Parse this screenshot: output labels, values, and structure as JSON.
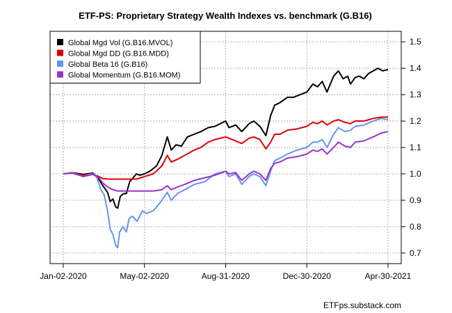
{
  "chart_data": {
    "type": "line",
    "title": "ETF-PS: Proprietary Strategy Wealth Indexes vs. benchmark (G.B16)",
    "xlabel": "",
    "ylabel": "",
    "credit": "ETFps.substack.com",
    "x_tick_labels": [
      "Jan-02-2020",
      "May-02-2020",
      "Aug-31-2020",
      "Dec-30-2020",
      "Apr-30-2021"
    ],
    "x_tick_values": [
      "2020-01-02",
      "2020-05-02",
      "2020-08-31",
      "2020-12-30",
      "2021-04-30"
    ],
    "xlim": [
      "2020-01-02",
      "2021-04-30"
    ],
    "y_ticks": [
      0.7,
      0.8,
      0.9,
      1.0,
      1.1,
      1.2,
      1.3,
      1.4,
      1.5
    ],
    "y_tick_labels": [
      "0.7",
      "0.8",
      "0.9",
      "1.0",
      "1.1",
      "1.2",
      "1.3",
      "1.4",
      "1.5"
    ],
    "ylim": [
      0.66,
      1.54
    ],
    "y_axis_side": "right",
    "grid": true,
    "legend_position": "top-left",
    "series": [
      {
        "name": "Global Mgd Vol (G.B16.MVOL)",
        "color": "#000000",
        "points": [
          [
            "2020-01-02",
            1.0
          ],
          [
            "2020-01-15",
            1.005
          ],
          [
            "2020-02-01",
            0.998
          ],
          [
            "2020-02-15",
            1.003
          ],
          [
            "2020-02-24",
            0.98
          ],
          [
            "2020-03-01",
            0.955
          ],
          [
            "2020-03-08",
            0.93
          ],
          [
            "2020-03-12",
            0.895
          ],
          [
            "2020-03-16",
            0.905
          ],
          [
            "2020-03-20",
            0.875
          ],
          [
            "2020-03-23",
            0.87
          ],
          [
            "2020-03-27",
            0.915
          ],
          [
            "2020-04-01",
            0.925
          ],
          [
            "2020-04-05",
            0.925
          ],
          [
            "2020-04-10",
            0.97
          ],
          [
            "2020-04-15",
            0.985
          ],
          [
            "2020-04-20",
            1.0
          ],
          [
            "2020-04-25",
            0.995
          ],
          [
            "2020-05-02",
            1.0
          ],
          [
            "2020-05-10",
            1.01
          ],
          [
            "2020-05-20",
            1.03
          ],
          [
            "2020-05-28",
            1.07
          ],
          [
            "2020-06-05",
            1.14
          ],
          [
            "2020-06-11",
            1.09
          ],
          [
            "2020-06-18",
            1.11
          ],
          [
            "2020-06-26",
            1.105
          ],
          [
            "2020-07-05",
            1.14
          ],
          [
            "2020-07-15",
            1.15
          ],
          [
            "2020-07-25",
            1.16
          ],
          [
            "2020-08-05",
            1.175
          ],
          [
            "2020-08-15",
            1.18
          ],
          [
            "2020-08-31",
            1.2
          ],
          [
            "2020-09-05",
            1.175
          ],
          [
            "2020-09-15",
            1.185
          ],
          [
            "2020-09-24",
            1.16
          ],
          [
            "2020-10-05",
            1.19
          ],
          [
            "2020-10-12",
            1.2
          ],
          [
            "2020-10-21",
            1.18
          ],
          [
            "2020-10-30",
            1.145
          ],
          [
            "2020-11-06",
            1.22
          ],
          [
            "2020-11-12",
            1.26
          ],
          [
            "2020-11-20",
            1.27
          ],
          [
            "2020-12-01",
            1.29
          ],
          [
            "2020-12-10",
            1.29
          ],
          [
            "2020-12-20",
            1.3
          ],
          [
            "2020-12-30",
            1.31
          ],
          [
            "2021-01-08",
            1.34
          ],
          [
            "2021-01-15",
            1.33
          ],
          [
            "2021-01-22",
            1.35
          ],
          [
            "2021-01-29",
            1.31
          ],
          [
            "2021-02-08",
            1.37
          ],
          [
            "2021-02-15",
            1.39
          ],
          [
            "2021-02-22",
            1.36
          ],
          [
            "2021-03-01",
            1.37
          ],
          [
            "2021-03-05",
            1.34
          ],
          [
            "2021-03-12",
            1.365
          ],
          [
            "2021-03-18",
            1.37
          ],
          [
            "2021-03-25",
            1.36
          ],
          [
            "2021-04-01",
            1.38
          ],
          [
            "2021-04-08",
            1.39
          ],
          [
            "2021-04-15",
            1.4
          ],
          [
            "2021-04-22",
            1.39
          ],
          [
            "2021-04-30",
            1.395
          ]
        ]
      },
      {
        "name": "Global Mgd DD (G.B16.MDD)",
        "color": "#e00000",
        "points": [
          [
            "2020-01-02",
            1.0
          ],
          [
            "2020-01-15",
            1.003
          ],
          [
            "2020-02-01",
            0.995
          ],
          [
            "2020-02-15",
            1.0
          ],
          [
            "2020-02-24",
            0.99
          ],
          [
            "2020-03-01",
            0.982
          ],
          [
            "2020-03-08",
            0.98
          ],
          [
            "2020-03-16",
            0.98
          ],
          [
            "2020-03-23",
            0.98
          ],
          [
            "2020-04-01",
            0.98
          ],
          [
            "2020-04-10",
            0.98
          ],
          [
            "2020-04-20",
            0.98
          ],
          [
            "2020-05-02",
            0.99
          ],
          [
            "2020-05-15",
            1.0
          ],
          [
            "2020-05-28",
            1.03
          ],
          [
            "2020-06-05",
            1.07
          ],
          [
            "2020-06-11",
            1.045
          ],
          [
            "2020-06-20",
            1.055
          ],
          [
            "2020-07-01",
            1.07
          ],
          [
            "2020-07-15",
            1.09
          ],
          [
            "2020-07-25",
            1.1
          ],
          [
            "2020-08-05",
            1.12
          ],
          [
            "2020-08-15",
            1.13
          ],
          [
            "2020-08-31",
            1.14
          ],
          [
            "2020-09-10",
            1.13
          ],
          [
            "2020-09-24",
            1.115
          ],
          [
            "2020-10-05",
            1.135
          ],
          [
            "2020-10-12",
            1.14
          ],
          [
            "2020-10-21",
            1.13
          ],
          [
            "2020-10-30",
            1.095
          ],
          [
            "2020-11-06",
            1.12
          ],
          [
            "2020-11-12",
            1.15
          ],
          [
            "2020-11-20",
            1.15
          ],
          [
            "2020-12-01",
            1.165
          ],
          [
            "2020-12-15",
            1.17
          ],
          [
            "2020-12-30",
            1.18
          ],
          [
            "2021-01-08",
            1.195
          ],
          [
            "2021-01-15",
            1.19
          ],
          [
            "2021-01-22",
            1.2
          ],
          [
            "2021-01-29",
            1.185
          ],
          [
            "2021-02-08",
            1.2
          ],
          [
            "2021-02-15",
            1.205
          ],
          [
            "2021-02-25",
            1.195
          ],
          [
            "2021-03-05",
            1.19
          ],
          [
            "2021-03-12",
            1.2
          ],
          [
            "2021-03-25",
            1.2
          ],
          [
            "2021-04-08",
            1.21
          ],
          [
            "2021-04-20",
            1.215
          ],
          [
            "2021-04-30",
            1.215
          ]
        ]
      },
      {
        "name": "Global Beta 16 (G.B16)",
        "color": "#6495ed",
        "points": [
          [
            "2020-01-02",
            1.0
          ],
          [
            "2020-01-15",
            1.005
          ],
          [
            "2020-02-01",
            0.99
          ],
          [
            "2020-02-12",
            1.0
          ],
          [
            "2020-02-20",
            0.995
          ],
          [
            "2020-02-27",
            0.94
          ],
          [
            "2020-03-03",
            0.92
          ],
          [
            "2020-03-08",
            0.86
          ],
          [
            "2020-03-12",
            0.79
          ],
          [
            "2020-03-16",
            0.77
          ],
          [
            "2020-03-20",
            0.73
          ],
          [
            "2020-03-23",
            0.72
          ],
          [
            "2020-03-26",
            0.78
          ],
          [
            "2020-03-31",
            0.8
          ],
          [
            "2020-04-05",
            0.78
          ],
          [
            "2020-04-09",
            0.83
          ],
          [
            "2020-04-14",
            0.84
          ],
          [
            "2020-04-21",
            0.82
          ],
          [
            "2020-04-29",
            0.86
          ],
          [
            "2020-05-05",
            0.85
          ],
          [
            "2020-05-15",
            0.86
          ],
          [
            "2020-05-25",
            0.89
          ],
          [
            "2020-06-05",
            0.93
          ],
          [
            "2020-06-11",
            0.9
          ],
          [
            "2020-06-20",
            0.925
          ],
          [
            "2020-07-01",
            0.94
          ],
          [
            "2020-07-15",
            0.96
          ],
          [
            "2020-07-31",
            0.97
          ],
          [
            "2020-08-15",
            1.0
          ],
          [
            "2020-08-31",
            1.01
          ],
          [
            "2020-09-05",
            0.99
          ],
          [
            "2020-09-15",
            1.0
          ],
          [
            "2020-09-24",
            0.96
          ],
          [
            "2020-10-05",
            0.99
          ],
          [
            "2020-10-12",
            1.0
          ],
          [
            "2020-10-21",
            0.99
          ],
          [
            "2020-10-30",
            0.955
          ],
          [
            "2020-11-06",
            1.01
          ],
          [
            "2020-11-12",
            1.05
          ],
          [
            "2020-11-20",
            1.06
          ],
          [
            "2020-12-01",
            1.075
          ],
          [
            "2020-12-15",
            1.09
          ],
          [
            "2020-12-30",
            1.1
          ],
          [
            "2021-01-08",
            1.12
          ],
          [
            "2021-01-15",
            1.12
          ],
          [
            "2021-01-22",
            1.13
          ],
          [
            "2021-01-29",
            1.1
          ],
          [
            "2021-02-08",
            1.15
          ],
          [
            "2021-02-15",
            1.175
          ],
          [
            "2021-02-25",
            1.16
          ],
          [
            "2021-03-05",
            1.165
          ],
          [
            "2021-03-12",
            1.18
          ],
          [
            "2021-03-25",
            1.185
          ],
          [
            "2021-04-08",
            1.2
          ],
          [
            "2021-04-20",
            1.21
          ],
          [
            "2021-04-30",
            1.205
          ]
        ]
      },
      {
        "name": "Global Momentum (G.B16.MOM)",
        "color": "#9932cc",
        "points": [
          [
            "2020-01-02",
            1.0
          ],
          [
            "2020-01-15",
            1.003
          ],
          [
            "2020-02-01",
            0.99
          ],
          [
            "2020-02-15",
            0.998
          ],
          [
            "2020-02-24",
            0.985
          ],
          [
            "2020-03-01",
            0.965
          ],
          [
            "2020-03-08",
            0.95
          ],
          [
            "2020-03-16",
            0.94
          ],
          [
            "2020-03-23",
            0.935
          ],
          [
            "2020-04-01",
            0.935
          ],
          [
            "2020-04-15",
            0.935
          ],
          [
            "2020-05-02",
            0.935
          ],
          [
            "2020-05-15",
            0.935
          ],
          [
            "2020-05-28",
            0.94
          ],
          [
            "2020-06-05",
            0.955
          ],
          [
            "2020-06-11",
            0.94
          ],
          [
            "2020-06-20",
            0.95
          ],
          [
            "2020-07-01",
            0.96
          ],
          [
            "2020-07-15",
            0.975
          ],
          [
            "2020-07-31",
            0.985
          ],
          [
            "2020-08-15",
            0.995
          ],
          [
            "2020-08-31",
            1.01
          ],
          [
            "2020-09-05",
            1.0
          ],
          [
            "2020-09-15",
            1.005
          ],
          [
            "2020-09-24",
            0.975
          ],
          [
            "2020-10-05",
            1.0
          ],
          [
            "2020-10-12",
            1.01
          ],
          [
            "2020-10-21",
            1.0
          ],
          [
            "2020-10-30",
            0.975
          ],
          [
            "2020-11-06",
            1.02
          ],
          [
            "2020-11-12",
            1.04
          ],
          [
            "2020-11-20",
            1.045
          ],
          [
            "2020-12-01",
            1.06
          ],
          [
            "2020-12-15",
            1.065
          ],
          [
            "2020-12-30",
            1.075
          ],
          [
            "2021-01-08",
            1.09
          ],
          [
            "2021-01-15",
            1.085
          ],
          [
            "2021-01-22",
            1.095
          ],
          [
            "2021-01-29",
            1.075
          ],
          [
            "2021-02-08",
            1.1
          ],
          [
            "2021-02-15",
            1.12
          ],
          [
            "2021-02-25",
            1.105
          ],
          [
            "2021-03-05",
            1.1
          ],
          [
            "2021-03-12",
            1.12
          ],
          [
            "2021-03-25",
            1.125
          ],
          [
            "2021-04-08",
            1.14
          ],
          [
            "2021-04-20",
            1.155
          ],
          [
            "2021-04-30",
            1.16
          ]
        ]
      }
    ]
  }
}
